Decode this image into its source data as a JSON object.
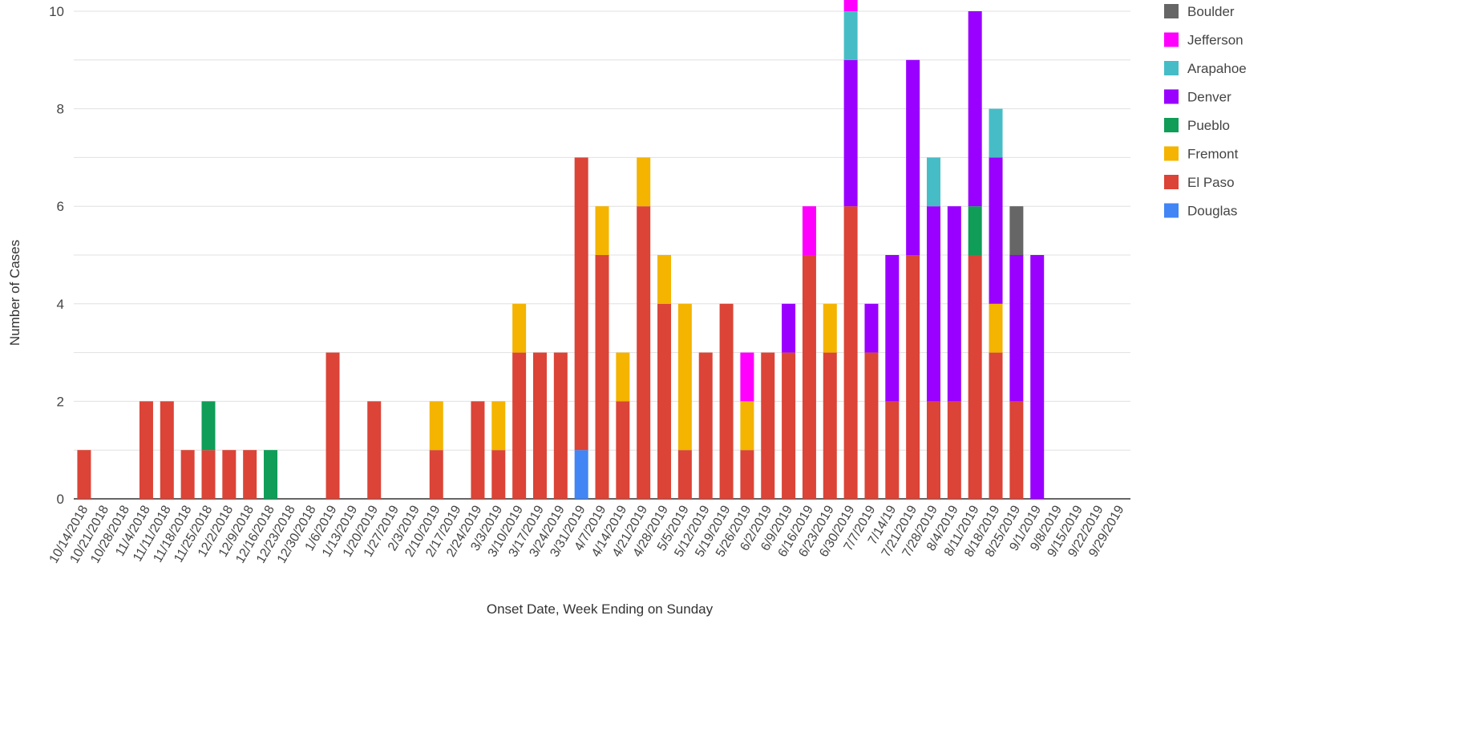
{
  "chart_data": {
    "type": "bar",
    "stacked": true,
    "title": "",
    "xlabel": "Onset Date, Week Ending on Sunday",
    "ylabel": "Number of Cases",
    "ylim": [
      0,
      10
    ],
    "yticks": [
      0,
      2,
      4,
      6,
      8,
      10
    ],
    "grid": true,
    "legend_position": "right",
    "legend_order": [
      "Boulder",
      "Jefferson",
      "Arapahoe",
      "Denver",
      "Pueblo",
      "Fremont",
      "El Paso",
      "Douglas"
    ],
    "categories": [
      "10/14/2018",
      "10/21/2018",
      "10/28/2018",
      "11/4/2018",
      "11/11/2018",
      "11/18/2018",
      "11/25/2018",
      "12/2/2018",
      "12/9/2018",
      "12/16/2018",
      "12/23/2018",
      "12/30/2018",
      "1/6/2019",
      "1/13/2019",
      "1/20/2019",
      "1/27/2019",
      "2/3/2019",
      "2/10/2019",
      "2/17/2019",
      "2/24/2019",
      "3/3/2019",
      "3/10/2019",
      "3/17/2019",
      "3/24/2019",
      "3/31/2019",
      "4/7/2019",
      "4/14/2019",
      "4/21/2019",
      "4/28/2019",
      "5/5/2019",
      "5/12/2019",
      "5/19/2019",
      "5/26/2019",
      "6/2/2019",
      "6/9/2019",
      "6/16/2019",
      "6/23/2019",
      "6/30/2019",
      "7/7/2019",
      "7/14/19",
      "7/21/2019",
      "7/28/2019",
      "8/4/2019",
      "8/11/2019",
      "8/18/2019",
      "8/25/2019",
      "9/1/2019",
      "9/8/2019",
      "9/15/2019",
      "9/22/2019",
      "9/29/2019"
    ],
    "series": [
      {
        "name": "Douglas",
        "color": "#4285f4",
        "values": [
          0,
          0,
          0,
          0,
          0,
          0,
          0,
          0,
          0,
          0,
          0,
          0,
          0,
          0,
          0,
          0,
          0,
          0,
          0,
          0,
          0,
          0,
          0,
          0,
          1,
          0,
          0,
          0,
          0,
          0,
          0,
          0,
          0,
          0,
          0,
          0,
          0,
          0,
          0,
          0,
          0,
          0,
          0,
          0,
          0,
          0,
          0,
          0,
          0,
          0,
          0
        ]
      },
      {
        "name": "El Paso",
        "color": "#db4437",
        "values": [
          1,
          0,
          0,
          2,
          2,
          1,
          1,
          1,
          1,
          0,
          0,
          0,
          3,
          0,
          2,
          0,
          0,
          1,
          0,
          2,
          1,
          3,
          3,
          3,
          6,
          5,
          2,
          6,
          4,
          1,
          3,
          4,
          1,
          3,
          3,
          5,
          3,
          6,
          3,
          2,
          5,
          2,
          2,
          5,
          3,
          2,
          0,
          0,
          0,
          0,
          0
        ]
      },
      {
        "name": "Fremont",
        "color": "#f4b400",
        "values": [
          0,
          0,
          0,
          0,
          0,
          0,
          0,
          0,
          0,
          0,
          0,
          0,
          0,
          0,
          0,
          0,
          0,
          1,
          0,
          0,
          1,
          1,
          0,
          0,
          0,
          1,
          1,
          1,
          1,
          3,
          0,
          0,
          1,
          0,
          0,
          0,
          1,
          0,
          0,
          0,
          0,
          0,
          0,
          0,
          1,
          0,
          0,
          0,
          0,
          0,
          0
        ]
      },
      {
        "name": "Pueblo",
        "color": "#0f9d58",
        "values": [
          0,
          0,
          0,
          0,
          0,
          0,
          1,
          0,
          0,
          1,
          0,
          0,
          0,
          0,
          0,
          0,
          0,
          0,
          0,
          0,
          0,
          0,
          0,
          0,
          0,
          0,
          0,
          0,
          0,
          0,
          0,
          0,
          0,
          0,
          0,
          0,
          0,
          0,
          0,
          0,
          0,
          0,
          0,
          1,
          0,
          0,
          0,
          0,
          0,
          0,
          0
        ]
      },
      {
        "name": "Denver",
        "color": "#9900ff",
        "values": [
          0,
          0,
          0,
          0,
          0,
          0,
          0,
          0,
          0,
          0,
          0,
          0,
          0,
          0,
          0,
          0,
          0,
          0,
          0,
          0,
          0,
          0,
          0,
          0,
          0,
          0,
          0,
          0,
          0,
          0,
          0,
          0,
          0,
          0,
          1,
          0,
          0,
          3,
          1,
          3,
          4,
          4,
          4,
          4,
          3,
          3,
          5,
          0,
          0,
          0,
          0
        ]
      },
      {
        "name": "Arapahoe",
        "color": "#46bdc6",
        "values": [
          0,
          0,
          0,
          0,
          0,
          0,
          0,
          0,
          0,
          0,
          0,
          0,
          0,
          0,
          0,
          0,
          0,
          0,
          0,
          0,
          0,
          0,
          0,
          0,
          0,
          0,
          0,
          0,
          0,
          0,
          0,
          0,
          0,
          0,
          0,
          0,
          0,
          1,
          0,
          0,
          0,
          1,
          0,
          0,
          1,
          0,
          0,
          0,
          0,
          0,
          0
        ]
      },
      {
        "name": "Jefferson",
        "color": "#ff00ff",
        "values": [
          0,
          0,
          0,
          0,
          0,
          0,
          0,
          0,
          0,
          0,
          0,
          0,
          0,
          0,
          0,
          0,
          0,
          0,
          0,
          0,
          0,
          0,
          0,
          0,
          0,
          0,
          0,
          0,
          0,
          0,
          0,
          0,
          1,
          0,
          0,
          1,
          0,
          1,
          0,
          0,
          0,
          0,
          0,
          0,
          0,
          0,
          0,
          0,
          0,
          0,
          0
        ]
      },
      {
        "name": "Boulder",
        "color": "#666666",
        "values": [
          0,
          0,
          0,
          0,
          0,
          0,
          0,
          0,
          0,
          0,
          0,
          0,
          0,
          0,
          0,
          0,
          0,
          0,
          0,
          0,
          0,
          0,
          0,
          0,
          0,
          0,
          0,
          0,
          0,
          0,
          0,
          0,
          0,
          0,
          0,
          0,
          0,
          0,
          0,
          0,
          0,
          0,
          0,
          0,
          0,
          1,
          0,
          0,
          0,
          0,
          0
        ]
      }
    ]
  }
}
